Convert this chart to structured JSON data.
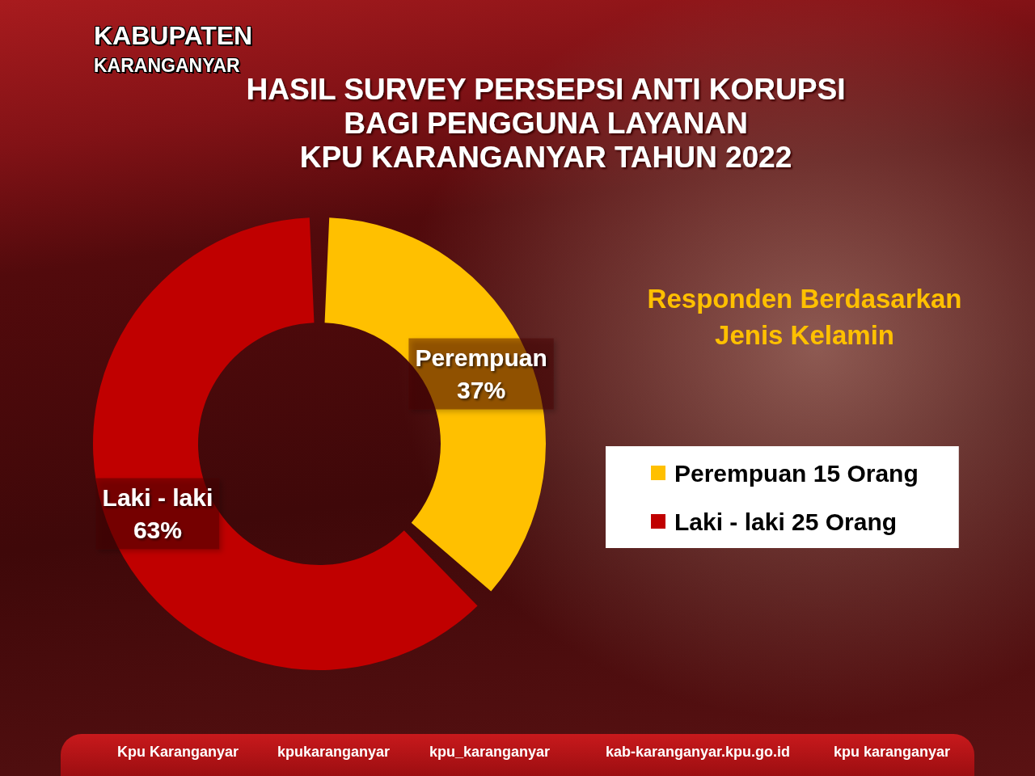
{
  "chart_data": {
    "type": "donut",
    "title": "HASIL SURVEY PERSEPSI ANTI KORUPSI\nBAGI PENGGUNA LAYANAN\nKPU KARANGANYAR TAHUN 2022",
    "subtitle": "Responden Berdasarkan\nJenis Kelamin",
    "categories": [
      "Perempuan 15 Orang",
      "Laki - laki 25 Orang"
    ],
    "values": [
      37,
      63
    ],
    "colors": [
      "#ffc000",
      "#c00000"
    ],
    "value_labels": [
      "Perempuan\n37%",
      "Laki - laki\n63%"
    ],
    "legend": "right",
    "annotations": [
      "KABUPATEN",
      "KARANGANYAR",
      "Kpu Karanganyar",
      "kpukaranganyar",
      "kpu_karanganyar",
      "kab-karanganyar.kpu.go.id",
      "kpu karanganyar"
    ]
  }
}
